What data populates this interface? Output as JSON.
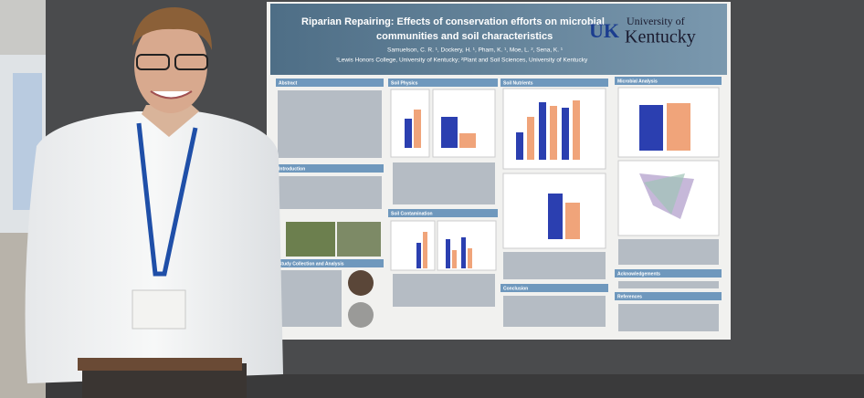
{
  "poster": {
    "title_lines": [
      "Riparian Repairing: Effects of conservation efforts on microbial",
      "communities and soil characteristics"
    ],
    "authors": "Samuelson, C. R. ¹, Dockery, H. ¹, Pham, K. ¹, Moe, L. ², Sena, K. ¹",
    "affiliations": "¹Lewis Honors College, University of Kentucky; ²Plant and Soil Sciences, University of Kentucky",
    "logo": {
      "mark": "UK",
      "name_lines": [
        "University of",
        "Kentucky"
      ]
    },
    "sections": [
      "Abstract",
      "Introduction",
      "Study Collection and Analysis",
      "Soil Physics",
      "Soil Contamination",
      "Soil Nutrients",
      "Conclusion",
      "Microbial Analysis",
      "Acknowledgements",
      "References"
    ]
  }
}
